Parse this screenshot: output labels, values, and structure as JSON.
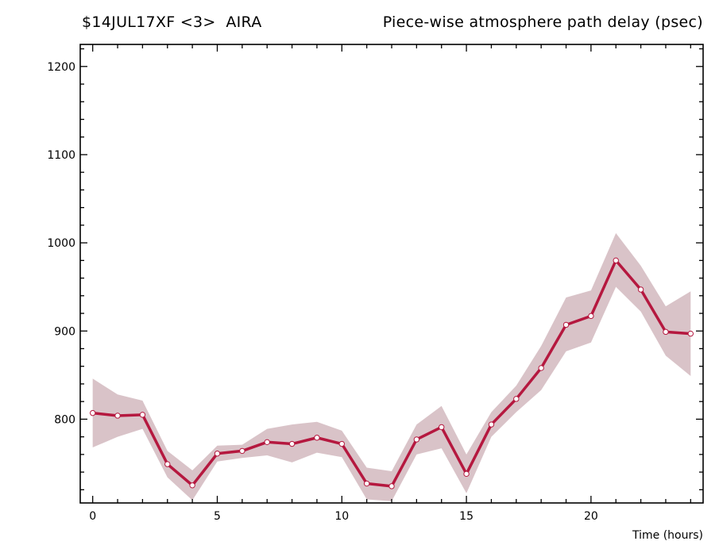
{
  "title": {
    "left": "$14JUL17XF <3>  AIRA",
    "right": "Piece-wise atmosphere path delay (psec)"
  },
  "chart_data": {
    "type": "line",
    "title": "Piece-wise atmosphere path delay (psec)",
    "xlabel": "Time (hours)",
    "ylabel": "",
    "xlim": [
      -0.5,
      24.5
    ],
    "ylim": [
      705,
      1225
    ],
    "xticks": [
      0,
      5,
      10,
      15,
      20
    ],
    "yticks": [
      800,
      900,
      1000,
      1100,
      1200
    ],
    "x": [
      0,
      1,
      2,
      3,
      4,
      5,
      6,
      7,
      8,
      9,
      10,
      11,
      12,
      13,
      14,
      15,
      16,
      17,
      18,
      19,
      20,
      21,
      22,
      23,
      24
    ],
    "series": [
      {
        "values": [
          807,
          804,
          805,
          749,
          725,
          761,
          764,
          774,
          772,
          779,
          772,
          727,
          724,
          777,
          791,
          738,
          794,
          823,
          858,
          907,
          917,
          980,
          947,
          899,
          897
        ]
      }
    ],
    "band_upper": [
      846,
      828,
      821,
      764,
      742,
      770,
      771,
      789,
      794,
      797,
      787,
      745,
      741,
      794,
      815,
      760,
      808,
      838,
      883,
      938,
      946,
      1011,
      974,
      928,
      945
    ],
    "band_lower": [
      768,
      780,
      789,
      734,
      708,
      752,
      756,
      759,
      751,
      762,
      757,
      709,
      707,
      760,
      767,
      716,
      780,
      808,
      833,
      877,
      887,
      950,
      922,
      872,
      849
    ],
    "colors": {
      "line": "#b5183f",
      "band": "#d9c3c8",
      "marker_fill": "#ffffff"
    },
    "grid": false,
    "legend": "none"
  }
}
